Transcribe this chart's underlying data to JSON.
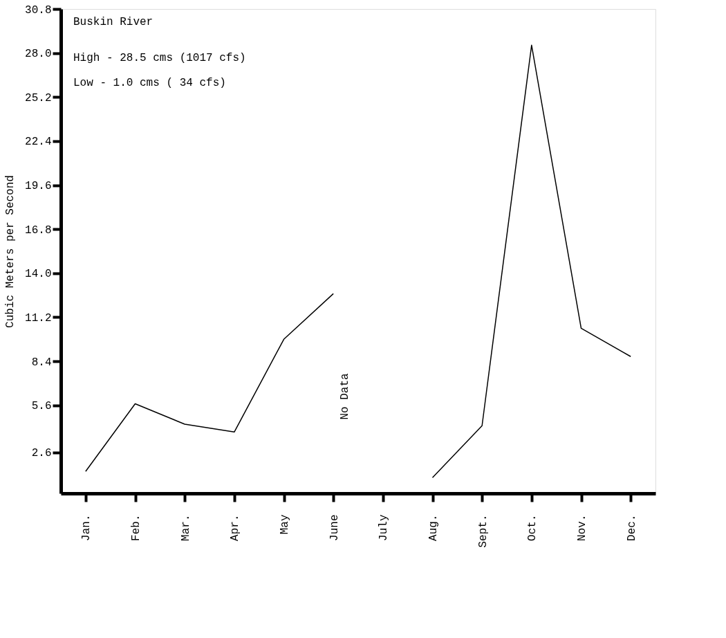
{
  "chart_data": {
    "type": "line",
    "ylabel": "Cubic Meters per Second",
    "categories": [
      "Jan.",
      "Feb.",
      "Mar.",
      "Apr.",
      "May",
      "June",
      "July",
      "Aug.",
      "Sept.",
      "Oct.",
      "Nov.",
      "Dec."
    ],
    "series": [
      {
        "color": "#000000",
        "values": [
          1.4,
          5.7,
          4.4,
          3.9,
          9.8,
          12.7,
          null,
          1.0,
          4.3,
          28.5,
          10.5,
          8.7
        ]
      }
    ],
    "ylim": [
      0,
      30.8
    ],
    "yticks": [
      2.6,
      5.6,
      8.4,
      {
        "value": 11.2,
        "label": "11.2"
      },
      {
        "value": 14.0,
        "label": "14.0"
      },
      16.8,
      19.6,
      22.4,
      25.2,
      {
        "value": 28.0,
        "label": "28.0"
      },
      30.8
    ],
    "annotations": [
      "Buskin River",
      "High - 28.5 cms (1017 cfs)",
      "Low  -  1.0 cms (  34 cfs)",
      "No Data"
    ],
    "grid": false,
    "marker": "none",
    "line_style": "solid"
  }
}
